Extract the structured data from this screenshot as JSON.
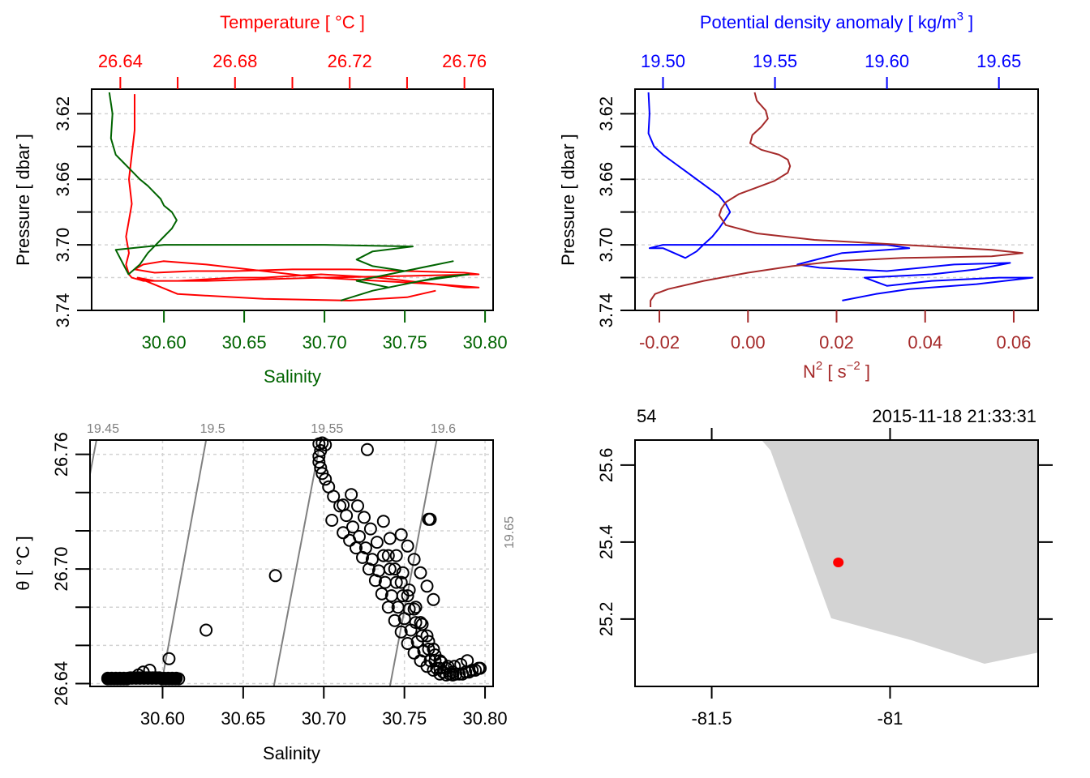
{
  "chart_data": [
    {
      "id": "profile-ts",
      "type": "line",
      "top_axis": {
        "label": "Temperature [ °C ]",
        "color": "#ff0000",
        "ticks": [
          26.64,
          26.66,
          26.68,
          26.7,
          26.72,
          26.74,
          26.76
        ],
        "tick_labels": [
          "26.64",
          "",
          "26.68",
          "",
          "26.72",
          "",
          "26.76"
        ],
        "range": [
          26.63,
          26.77
        ]
      },
      "bottom_axis": {
        "label": "Salinity",
        "color": "#006400",
        "ticks": [
          30.6,
          30.65,
          30.7,
          30.75,
          30.8
        ],
        "tick_labels": [
          "30.60",
          "30.65",
          "30.70",
          "30.75",
          "30.80"
        ],
        "range": [
          30.555,
          30.805
        ]
      },
      "y_axis": {
        "label": "Pressure [ dbar ]",
        "ticks": [
          3.62,
          3.64,
          3.66,
          3.68,
          3.7,
          3.72,
          3.74
        ],
        "tick_labels": [
          "3.62",
          "",
          "3.66",
          "",
          "3.70",
          "",
          "3.74"
        ],
        "range": [
          3.74,
          3.605
        ],
        "reversed": true
      },
      "grid": true,
      "series": [
        {
          "name": "Temperature",
          "color": "#ff0000",
          "x": [
            26.645,
            26.645,
            26.644,
            26.643,
            26.644,
            26.643,
            26.642,
            26.643,
            26.642,
            26.643,
            26.644,
            26.648,
            26.655,
            26.66,
            26.67,
            26.68,
            26.69,
            26.7,
            26.71,
            26.72,
            26.73,
            26.74,
            26.75,
            26.76,
            26.765,
            26.75,
            26.73,
            26.71,
            26.69,
            26.67,
            26.655,
            26.648,
            26.645,
            26.652,
            26.665,
            26.68,
            26.7,
            26.72,
            26.74,
            26.76,
            26.765,
            26.74,
            26.71,
            26.69,
            26.67,
            26.652,
            26.646,
            26.66,
            26.69,
            26.72,
            26.74,
            26.75
          ],
          "y": [
            3.608,
            3.63,
            3.645,
            3.66,
            3.675,
            3.685,
            3.695,
            3.705,
            3.712,
            3.718,
            3.72,
            3.722,
            3.722,
            3.722,
            3.721,
            3.72,
            3.72,
            3.719,
            3.718,
            3.719,
            3.72,
            3.722,
            3.724,
            3.726,
            3.726,
            3.724,
            3.722,
            3.72,
            3.716,
            3.712,
            3.71,
            3.712,
            3.715,
            3.717,
            3.716,
            3.716,
            3.715,
            3.715,
            3.716,
            3.717,
            3.718,
            3.719,
            3.72,
            3.721,
            3.722,
            3.722,
            3.72,
            3.73,
            3.733,
            3.734,
            3.732,
            3.728
          ]
        },
        {
          "name": "Salinity",
          "color": "#006400",
          "x": [
            30.566,
            30.568,
            30.567,
            30.57,
            30.575,
            30.58,
            30.585,
            30.59,
            30.594,
            30.598,
            30.6,
            30.605,
            30.608,
            30.605,
            30.6,
            30.595,
            30.59,
            30.585,
            30.578,
            30.57,
            30.6,
            30.65,
            30.7,
            30.755,
            30.73,
            30.72,
            30.73,
            30.75,
            30.77,
            30.78,
            30.76,
            30.74,
            30.72,
            30.74,
            30.77,
            30.79,
            30.76,
            30.73,
            30.71
          ],
          "y": [
            3.607,
            3.62,
            3.635,
            3.645,
            3.65,
            3.655,
            3.66,
            3.664,
            3.668,
            3.672,
            3.676,
            3.68,
            3.685,
            3.69,
            3.695,
            3.7,
            3.705,
            3.712,
            3.718,
            3.703,
            3.7,
            3.7,
            3.7,
            3.701,
            3.704,
            3.709,
            3.713,
            3.716,
            3.712,
            3.71,
            3.714,
            3.718,
            3.722,
            3.726,
            3.72,
            3.718,
            3.722,
            3.728,
            3.734
          ]
        }
      ]
    },
    {
      "id": "profile-density-n2",
      "type": "line",
      "top_axis": {
        "label": "Potential density anomaly [ kg/m3 ]",
        "label_main": "Potential density anomaly [ kg/m",
        "label_sup": "3",
        "label_end": " ]",
        "color": "#0000ff",
        "ticks": [
          19.5,
          19.55,
          19.6,
          19.65
        ],
        "tick_labels": [
          "19.50",
          "19.55",
          "19.60",
          "19.65"
        ],
        "range": [
          19.4875,
          19.6675
        ]
      },
      "bottom_axis": {
        "label": "N2 [ s-2 ]",
        "label_main": "N",
        "label_sup": "2",
        "label_mid": " [ s",
        "label_sup2": "−2",
        "label_end": " ]",
        "color": "#a52a2a",
        "ticks": [
          -0.02,
          0.0,
          0.02,
          0.04,
          0.06
        ],
        "tick_labels": [
          "-0.02",
          "0.00",
          "0.02",
          "0.04",
          "0.06"
        ],
        "range": [
          -0.0255,
          0.0655
        ]
      },
      "y_axis": {
        "label": "Pressure [ dbar ]",
        "ticks": [
          3.62,
          3.64,
          3.66,
          3.68,
          3.7,
          3.72,
          3.74
        ],
        "tick_labels": [
          "3.62",
          "",
          "3.66",
          "",
          "3.70",
          "",
          "3.74"
        ],
        "range": [
          3.74,
          3.605
        ],
        "reversed": true
      },
      "grid": true,
      "series": [
        {
          "name": "Potential density anomaly",
          "color": "#0000ff",
          "x": [
            19.4935,
            19.494,
            19.4935,
            19.496,
            19.5,
            19.505,
            19.51,
            19.515,
            19.52,
            19.525,
            19.528,
            19.53,
            19.527,
            19.525,
            19.522,
            19.518,
            19.515,
            19.51,
            19.5,
            19.494,
            19.5,
            19.53,
            19.56,
            19.6,
            19.61,
            19.58,
            19.56,
            19.57,
            19.6,
            19.63,
            19.655,
            19.64,
            19.62,
            19.59,
            19.6,
            19.62,
            19.65,
            19.665,
            19.64,
            19.61,
            19.595,
            19.58
          ],
          "y": [
            3.607,
            3.62,
            3.632,
            3.64,
            3.645,
            3.65,
            3.655,
            3.66,
            3.665,
            3.67,
            3.675,
            3.68,
            3.686,
            3.69,
            3.695,
            3.7,
            3.704,
            3.708,
            3.702,
            3.702,
            3.7,
            3.7,
            3.7,
            3.7,
            3.702,
            3.705,
            3.712,
            3.714,
            3.716,
            3.712,
            3.711,
            3.715,
            3.718,
            3.72,
            3.725,
            3.722,
            3.72,
            3.72,
            3.724,
            3.727,
            3.73,
            3.734
          ]
        },
        {
          "name": "N2",
          "color": "#a52a2a",
          "x": [
            0.0015,
            0.002,
            0.004,
            0.0045,
            0.003,
            0.001,
            0.0005,
            0.003,
            0.007,
            0.009,
            0.0095,
            0.009,
            0.006,
            0.002,
            -0.002,
            -0.005,
            -0.006,
            -0.0065,
            -0.005,
            0.002,
            0.015,
            0.035,
            0.055,
            0.062,
            0.055,
            0.035,
            0.02,
            0.01,
            0.0,
            -0.01,
            -0.018,
            -0.021,
            -0.022,
            -0.022
          ],
          "y": [
            3.607,
            3.612,
            3.618,
            3.623,
            3.628,
            3.633,
            3.638,
            3.642,
            3.645,
            3.648,
            3.652,
            3.656,
            3.661,
            3.665,
            3.669,
            3.674,
            3.678,
            3.682,
            3.688,
            3.693,
            3.697,
            3.7,
            3.703,
            3.705,
            3.707,
            3.708,
            3.71,
            3.713,
            3.717,
            3.722,
            3.727,
            3.73,
            3.734,
            3.738
          ]
        }
      ]
    },
    {
      "id": "ts-diagram",
      "type": "scatter",
      "xlabel": "Salinity",
      "ylabel": "θ [ °C ]",
      "x_ticks": [
        30.6,
        30.65,
        30.7,
        30.75,
        30.8
      ],
      "x_tick_labels": [
        "30.60",
        "30.65",
        "30.70",
        "30.75",
        "30.80"
      ],
      "y_ticks": [
        26.64,
        26.66,
        26.68,
        26.7,
        26.72,
        26.74,
        26.76
      ],
      "y_tick_labels": [
        "26.64",
        "",
        "",
        "26.70",
        "",
        "",
        "26.76"
      ],
      "xlim": [
        30.555,
        30.805
      ],
      "ylim": [
        26.6385,
        26.7675
      ],
      "grid": true,
      "isopycnals": {
        "color": "#808080",
        "values": [
          19.45,
          19.5,
          19.55,
          19.6,
          19.65
        ],
        "labels": [
          "19.45",
          "19.5",
          "19.55",
          "19.6",
          "19.65"
        ],
        "top_x": [
          30.559,
          30.627,
          30.698,
          30.77,
          30.841
        ],
        "bottom_x": [
          30.53,
          30.599,
          30.669,
          30.741,
          30.812
        ]
      },
      "points": {
        "x": [
          30.566,
          30.568,
          30.57,
          30.572,
          30.574,
          30.576,
          30.578,
          30.58,
          30.582,
          30.584,
          30.586,
          30.588,
          30.59,
          30.592,
          30.594,
          30.596,
          30.598,
          30.6,
          30.602,
          30.604,
          30.606,
          30.608,
          30.61,
          30.585,
          30.588,
          30.592,
          30.604,
          30.627,
          30.67,
          30.697,
          30.699,
          30.701,
          30.698,
          30.697,
          30.697,
          30.698,
          30.699,
          30.701,
          30.703,
          30.706,
          30.71,
          30.714,
          30.718,
          30.722,
          30.726,
          30.73,
          30.734,
          30.738,
          30.742,
          30.746,
          30.75,
          30.754,
          30.758,
          30.762,
          30.766,
          30.77,
          30.774,
          30.778,
          30.782,
          30.786,
          30.79,
          30.794,
          30.797,
          30.796,
          30.792,
          30.788,
          30.784,
          30.78,
          30.776,
          30.772,
          30.768,
          30.764,
          30.76,
          30.756,
          30.752,
          30.748,
          30.744,
          30.74,
          30.736,
          30.732,
          30.728,
          30.724,
          30.72,
          30.716,
          30.712,
          30.705,
          30.712,
          30.727,
          30.717,
          30.721,
          30.725,
          30.729,
          30.733,
          30.737,
          30.741,
          30.745,
          30.749,
          30.753,
          30.757,
          30.761,
          30.765,
          30.769,
          30.772,
          30.748,
          30.752,
          30.756,
          30.76,
          30.764,
          30.768,
          30.74,
          30.744,
          30.748,
          30.752,
          30.756,
          30.76,
          30.764,
          30.768,
          30.772,
          30.776,
          30.78,
          30.737,
          30.741,
          30.745,
          30.749,
          30.753,
          30.757,
          30.761,
          30.765,
          30.769,
          30.773,
          30.777,
          30.781,
          30.785,
          30.789,
          30.765,
          30.766
        ],
        "y": [
          26.6425,
          26.6425,
          26.6425,
          26.6425,
          26.6425,
          26.6425,
          26.6425,
          26.643,
          26.643,
          26.643,
          26.643,
          26.643,
          26.643,
          26.643,
          26.643,
          26.643,
          26.643,
          26.6425,
          26.6425,
          26.6425,
          26.6425,
          26.6425,
          26.6425,
          26.6445,
          26.646,
          26.647,
          26.653,
          26.668,
          26.6965,
          26.7655,
          26.766,
          26.765,
          26.762,
          26.759,
          26.756,
          26.753,
          26.75,
          26.747,
          26.743,
          26.738,
          26.733,
          26.728,
          26.722,
          26.717,
          26.711,
          26.705,
          26.699,
          26.693,
          26.686,
          26.68,
          26.674,
          26.668,
          26.662,
          26.657,
          26.652,
          26.648,
          26.646,
          26.645,
          26.645,
          26.645,
          26.646,
          26.647,
          26.648,
          26.648,
          26.647,
          26.646,
          26.645,
          26.6445,
          26.6445,
          26.645,
          26.647,
          26.649,
          26.652,
          26.656,
          26.661,
          26.667,
          26.673,
          26.68,
          26.687,
          26.694,
          26.7,
          26.706,
          26.711,
          26.715,
          26.719,
          26.7255,
          26.7335,
          26.7625,
          26.739,
          26.733,
          26.727,
          26.721,
          26.714,
          26.707,
          26.7,
          26.693,
          26.686,
          26.679,
          26.672,
          26.665,
          26.658,
          26.652,
          26.648,
          26.718,
          26.712,
          26.705,
          26.698,
          26.691,
          26.684,
          26.707,
          26.7,
          26.693,
          26.686,
          26.679,
          26.672,
          26.665,
          26.658,
          26.652,
          26.648,
          26.646,
          26.725,
          26.716,
          26.707,
          26.698,
          26.689,
          26.68,
          26.671,
          26.662,
          26.655,
          26.651,
          26.649,
          26.649,
          26.65,
          26.652,
          26.726,
          26.726
        ]
      }
    },
    {
      "id": "station-map",
      "type": "scatter",
      "top_left_label": "54",
      "top_right_label": "2015-11-18 21:33:31",
      "x_ticks": [
        -81.5,
        -81.0
      ],
      "x_tick_labels": [
        "-81.5",
        "-81"
      ],
      "y_ticks": [
        25.2,
        25.4,
        25.6
      ],
      "y_tick_labels": [
        "25.2",
        "25.4",
        "25.6"
      ],
      "xlim": [
        -81.715,
        -80.585
      ],
      "ylim": [
        25.025,
        25.665
      ],
      "land_polygon": {
        "color": "#d3d3d3",
        "lon": [
          -81.36,
          -81.335,
          -81.165,
          -80.94,
          -80.735,
          -80.585,
          -80.585
        ],
        "lat": [
          25.665,
          25.638,
          25.202,
          25.145,
          25.084,
          25.113,
          25.665
        ]
      },
      "station": {
        "lon": -81.145,
        "lat": 25.347,
        "color": "#ff0000"
      }
    }
  ]
}
